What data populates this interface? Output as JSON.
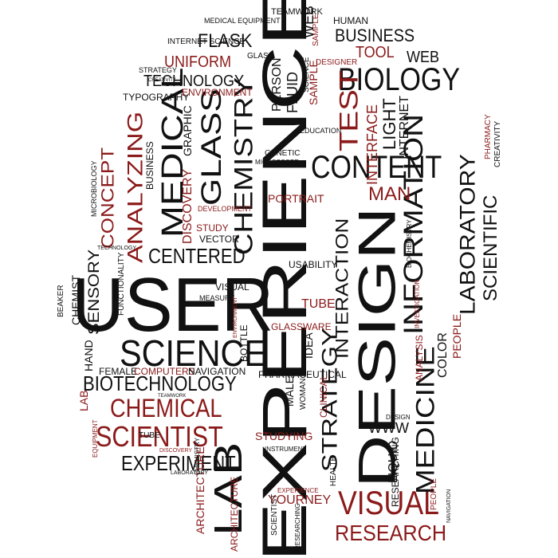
{
  "colors": {
    "black": "#111111",
    "red": "#8b1a1a",
    "background": "#ffffff"
  },
  "words": {
    "w1": "EXPERIENCE",
    "w2": "DESIGN",
    "w3": "USER",
    "w4": "SCIENCE",
    "w5": "BIOTECHNOLOGY",
    "w6": "CHEMICAL",
    "w7": "SCIENTIST",
    "w8": "EXPERIMENT",
    "w9": "LAB",
    "w10": "VISUAL",
    "w11": "RESEARCH",
    "w12": "INFORMATION",
    "w13": "LABORATORY",
    "w14": "MEDICINE",
    "w15": "STRATEGY",
    "w16": "INTERACTION",
    "w17": "CONTENT",
    "w18": "CHEMISTRY",
    "w19": "MEDICAL",
    "w20": "GLASS",
    "w21": "BIOLOGY",
    "w22": "BUSINESS",
    "w23": "FLASK",
    "w24": "TECHNOLOGY",
    "w25": "UNIFORM",
    "w26": "TOOL",
    "w27": "WEB",
    "w28": "TEST",
    "w29": "ANALYZING",
    "w30": "CONCEPT",
    "w31": "CENTERED",
    "w32": "SENSORY",
    "w33": "CHEMIST",
    "w34": "HAND",
    "w35": "FEMALE",
    "w36": "COMPUTERS",
    "w37": "NAVIGATION",
    "w38": "YOURNEY",
    "w39": "ARCHITECTURE",
    "w40": "WWW",
    "w41": "MAN",
    "w42": "PORTRAIT",
    "w43": "INTERFACE",
    "w44": "LIGHT",
    "w45": "INTERNET",
    "w46": "SCIENTIFIC",
    "w47": "COLOR",
    "w48": "PEOPLE",
    "w49": "STUDYING",
    "w50": "TUBE",
    "w51": "GLASSWARE",
    "w52": "IDEA",
    "w53": "LIQUID",
    "w54": "TEAMWORK",
    "w55": "HUMAN",
    "w56": "MEDICAL EQUIPMENT",
    "w57": "INTERNET SCIENCE",
    "w58": "ENVIRONMENT",
    "w59": "TYPOGRAPHY",
    "w60": "STRATEGY",
    "w61": "CREATIVITY",
    "w62": "FLUID",
    "w63": "PERSON",
    "w64": "SAMPLE",
    "w65": "DESIGNER",
    "w66": "GENETIC",
    "w67": "PHARMACY",
    "w68": "CREATIVITY",
    "w69": "DISCOVERY",
    "w70": "DEVELOPMENT",
    "w71": "STUDY",
    "w72": "VECTOR",
    "w73": "USABILITY",
    "w74": "FUNCTIONALITY",
    "w75": "BEAKER",
    "w76": "BOTTLE",
    "w77": "PHARMACEUTICAL",
    "w78": "MALE",
    "w79": "WOMAN",
    "w80": "CLINICAL",
    "w81": "ANALYSIS",
    "w82": "INVESTIGATION",
    "w83": "BIOCHEMISTRY",
    "w84": "HEALTH",
    "w85": "INSTRUMENT",
    "w86": "MICROBIOLOGY",
    "w87": "MICROSCOPE",
    "w88": "EDUCATION",
    "w89": "VISUAL",
    "w90": "MEASURE",
    "w91": "GRAPHIC",
    "w92": "ENVIRONMENT",
    "w93": "LAB",
    "w94": "GLASS",
    "w95": "SCIENCE",
    "w96": "SAMPLE",
    "w97": "CHEMISTRY",
    "w98": "TEAMWORK",
    "w99": "EQUIPMENT",
    "w100": "DISCOVERY",
    "w101": "PEOPLE",
    "w102": "NAVIGATION",
    "w103": "EXPERIENCE",
    "w104": "ARCHITECTURE",
    "w105": "RESEARCHING",
    "w106": "SCIENTIST",
    "w107": "RESEARCHING",
    "w108": "LABORATORY",
    "w109": "TECHNOLOGY",
    "w110": "BUSINESS",
    "w111": "DESIGN",
    "w112": "TUBE",
    "w113": "WEB"
  }
}
